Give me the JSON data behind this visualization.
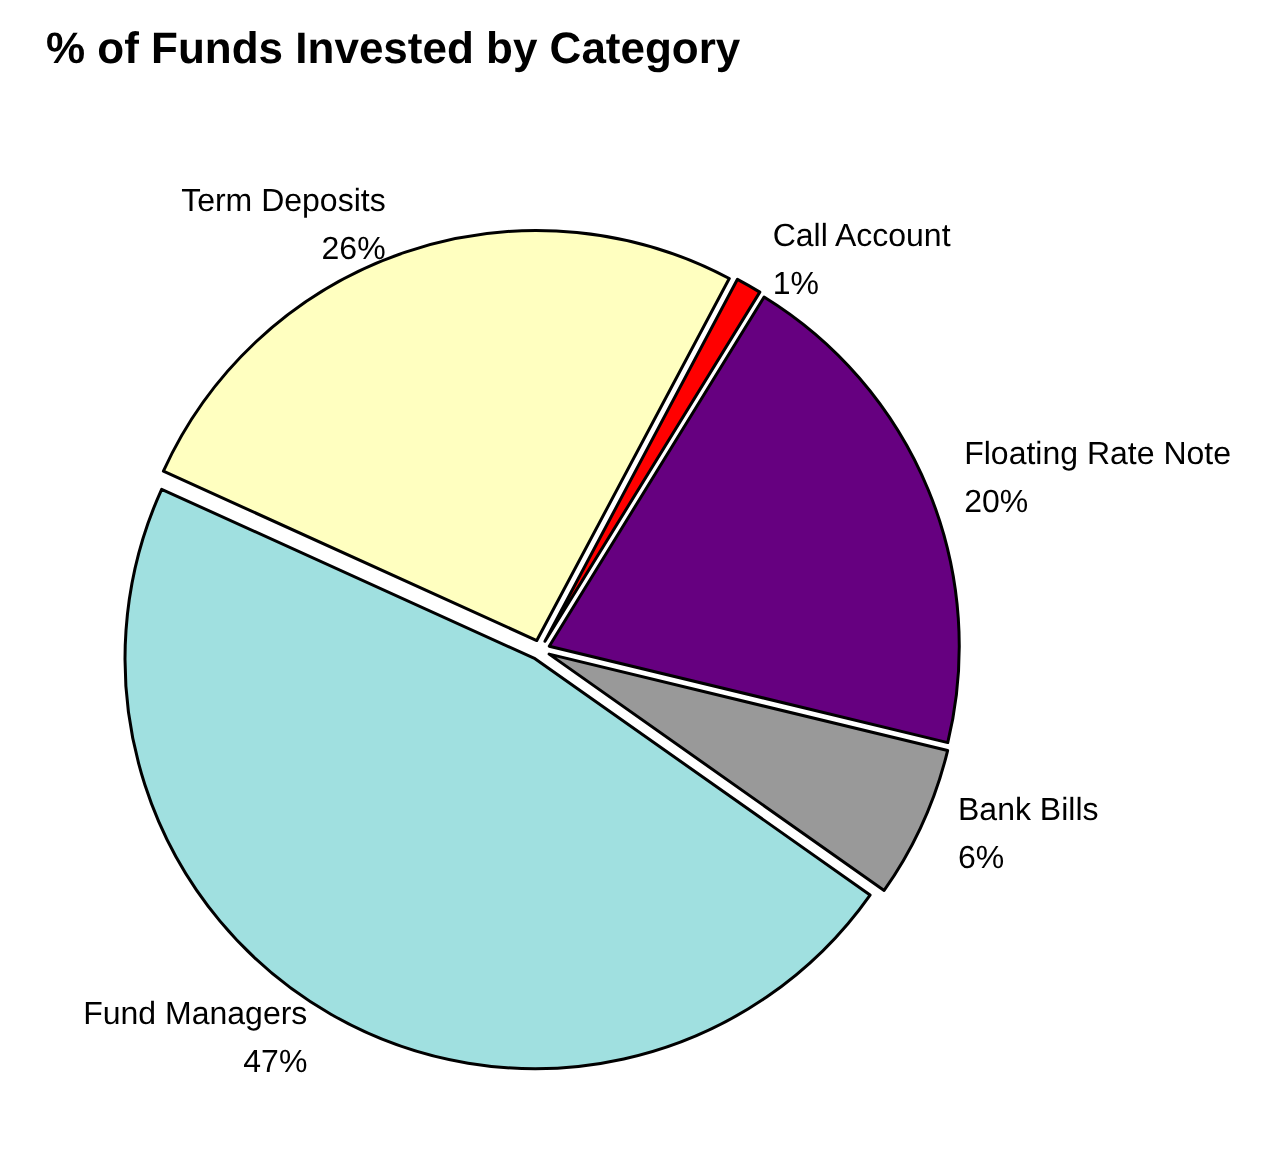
{
  "chart_data": {
    "type": "pie",
    "title": "% of Funds Invested by Category",
    "categories": [
      "Call Account",
      "Floating Rate Note",
      "Bank Bills",
      "Fund Managers",
      "Term Deposits"
    ],
    "values": [
      1,
      20,
      6,
      47,
      26
    ],
    "value_labels": [
      "1%",
      "20%",
      "6%",
      "47%",
      "26%"
    ],
    "colors": [
      "#ff0000",
      "#660080",
      "#999999",
      "#a0e0e0",
      "#ffffc0"
    ],
    "legend": false
  }
}
